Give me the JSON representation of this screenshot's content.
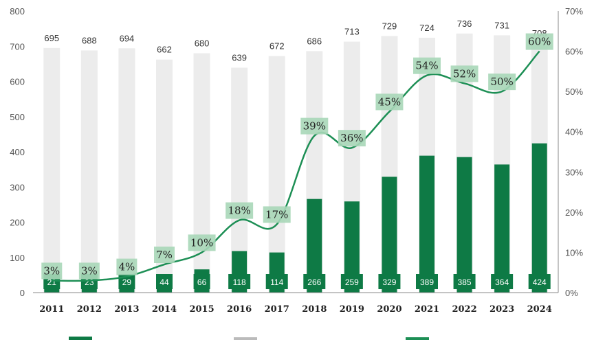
{
  "chart_data": {
    "type": "bar",
    "categories": [
      "2011",
      "2012",
      "2013",
      "2014",
      "2015",
      "2016",
      "2017",
      "2018",
      "2019",
      "2020",
      "2021",
      "2022",
      "2023",
      "2024"
    ],
    "series": [
      {
        "kind": "bar",
        "axis": "left",
        "color": "#ececec",
        "values": [
          695,
          688,
          694,
          662,
          680,
          639,
          672,
          686,
          713,
          729,
          724,
          736,
          731,
          708
        ]
      },
      {
        "kind": "bar",
        "axis": "left",
        "color": "#0e7a45",
        "values": [
          21,
          23,
          29,
          44,
          66,
          118,
          114,
          266,
          259,
          329,
          389,
          385,
          364,
          424
        ]
      },
      {
        "kind": "line",
        "axis": "right",
        "color": "#1d8f55",
        "label_bg": "#a8d7b8",
        "values": [
          3,
          3,
          4,
          7,
          10,
          18,
          17,
          39,
          36,
          45,
          54,
          52,
          50,
          60
        ],
        "value_labels": [
          "3%",
          "3%",
          "4%",
          "7%",
          "10%",
          "18%",
          "17%",
          "39%",
          "36%",
          "45%",
          "54%",
          "52%",
          "50%",
          "60%"
        ]
      }
    ],
    "y_left": {
      "min": 0,
      "max": 800,
      "ticks": [
        "0",
        "100",
        "200",
        "300",
        "400",
        "500",
        "600",
        "700",
        "800"
      ]
    },
    "y_right": {
      "min": 0,
      "max": 70,
      "ticks": [
        "0%",
        "10%",
        "20%",
        "30%",
        "40%",
        "50%",
        "60%",
        "70%"
      ]
    },
    "grid": false,
    "legend": "bottom"
  }
}
